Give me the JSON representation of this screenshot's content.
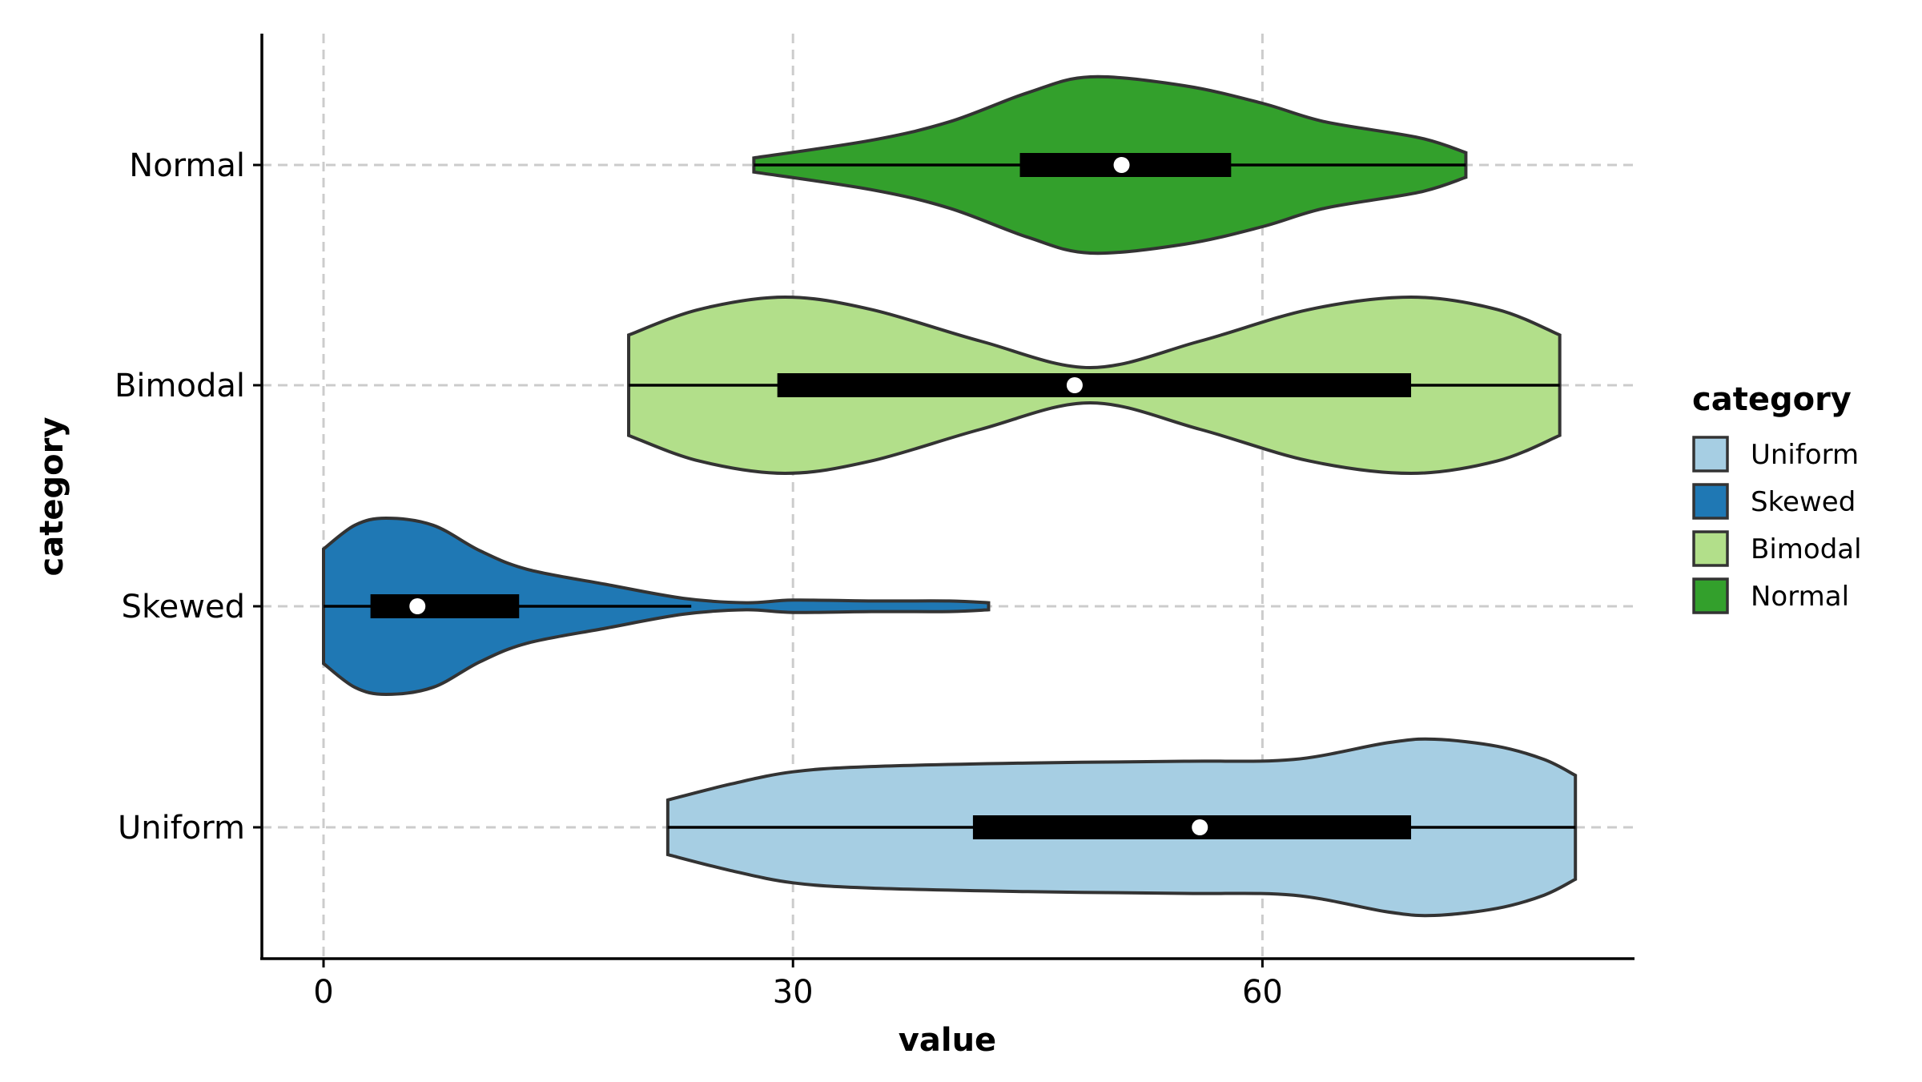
{
  "chart_data": {
    "type": "violin",
    "orientation": "horizontal",
    "xlabel": "value",
    "ylabel": "category",
    "xlim": [
      -3.5,
      84
    ],
    "x_ticks": [
      0,
      30,
      60
    ],
    "grid": "dashed major gridlines",
    "categories": [
      "Uniform",
      "Skewed",
      "Bimodal",
      "Normal"
    ],
    "legend": {
      "title": "category",
      "placement": "right",
      "entries": [
        "Uniform",
        "Skewed",
        "Bimodal",
        "Normal"
      ]
    },
    "colors": {
      "Uniform": "#a6cee3",
      "Skewed": "#1f78b4",
      "Bimodal": "#b2df8a",
      "Normal": "#33a02c"
    },
    "series": [
      {
        "name": "Uniform",
        "min": 22,
        "max": 80,
        "whisker_low": 22,
        "whisker_high": 80,
        "q1": 41.5,
        "median": 56,
        "q3": 69.5,
        "density": [
          [
            22,
            0.31
          ],
          [
            26,
            0.49
          ],
          [
            30,
            0.63
          ],
          [
            35,
            0.69
          ],
          [
            45,
            0.73
          ],
          [
            55,
            0.75
          ],
          [
            62,
            0.77
          ],
          [
            68,
            0.96
          ],
          [
            71,
            1.0
          ],
          [
            75,
            0.92
          ],
          [
            78,
            0.77
          ],
          [
            80,
            0.59
          ]
        ]
      },
      {
        "name": "Skewed",
        "min": 0,
        "max": 42.5,
        "whisker_low": 0,
        "whisker_high": 23.5,
        "q1": 3,
        "median": 6,
        "q3": 12.5,
        "density": [
          [
            0,
            0.65
          ],
          [
            2,
            0.92
          ],
          [
            4,
            1.0
          ],
          [
            7,
            0.92
          ],
          [
            10,
            0.63
          ],
          [
            13,
            0.42
          ],
          [
            18,
            0.25
          ],
          [
            23,
            0.09
          ],
          [
            27,
            0.04
          ],
          [
            30,
            0.07
          ],
          [
            35,
            0.06
          ],
          [
            40,
            0.06
          ],
          [
            42.5,
            0.04
          ]
        ]
      },
      {
        "name": "Bimodal",
        "min": 19.5,
        "max": 79,
        "whisker_low": 19.5,
        "whisker_high": 79,
        "q1": 29,
        "median": 48,
        "q3": 69.5,
        "density": [
          [
            19.5,
            0.57
          ],
          [
            24,
            0.86
          ],
          [
            29.5,
            1.0
          ],
          [
            35,
            0.86
          ],
          [
            42,
            0.5
          ],
          [
            49,
            0.2
          ],
          [
            56,
            0.5
          ],
          [
            63,
            0.86
          ],
          [
            69.5,
            1.0
          ],
          [
            75,
            0.86
          ],
          [
            79,
            0.57
          ]
        ]
      },
      {
        "name": "Normal",
        "min": 27.5,
        "max": 73,
        "whisker_low": 27.5,
        "whisker_high": 73,
        "q1": 44.5,
        "median": 51,
        "q3": 58,
        "density": [
          [
            27.5,
            0.08
          ],
          [
            35,
            0.28
          ],
          [
            40,
            0.49
          ],
          [
            45,
            0.82
          ],
          [
            49,
            1.0
          ],
          [
            55,
            0.9
          ],
          [
            60,
            0.7
          ],
          [
            64,
            0.49
          ],
          [
            70,
            0.31
          ],
          [
            73,
            0.14
          ]
        ]
      }
    ]
  }
}
